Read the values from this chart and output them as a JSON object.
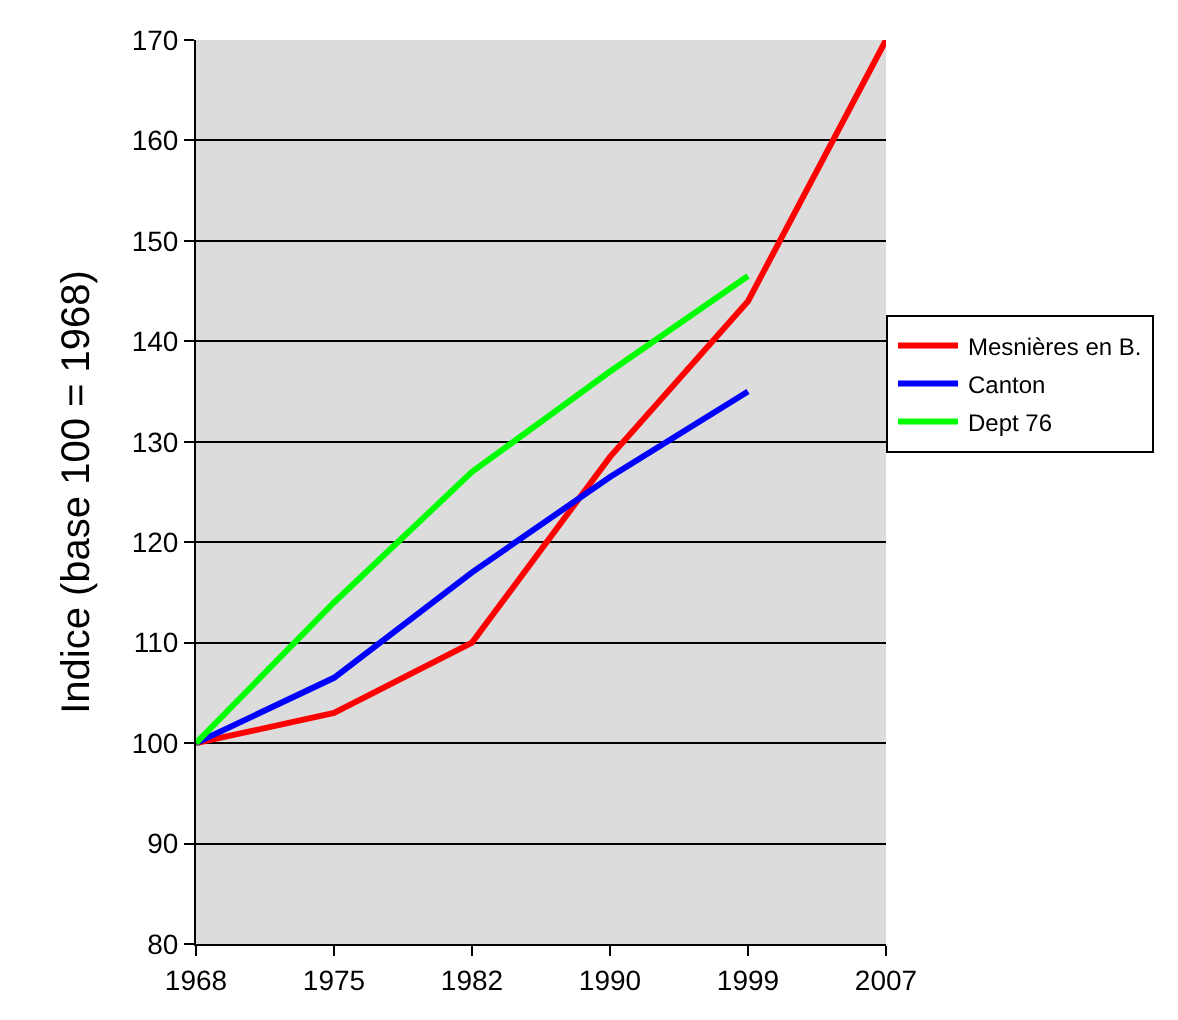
{
  "chart_data": {
    "type": "line",
    "ylabel": "Indice (base 100 = 1968)",
    "categories": [
      "1968",
      "1975",
      "1982",
      "1990",
      "1999",
      "2007"
    ],
    "series": [
      {
        "name": "Mesnières en B.",
        "color": "#ff0000",
        "values": [
          100,
          103,
          110,
          128.5,
          144,
          170
        ]
      },
      {
        "name": "Canton",
        "color": "#0000ff",
        "values": [
          100,
          106.5,
          117,
          126.5,
          135,
          null
        ]
      },
      {
        "name": "Dept 76",
        "color": "#00ff00",
        "values": [
          100,
          114,
          127,
          137,
          146.5,
          null
        ]
      }
    ],
    "ylim": [
      80,
      170
    ],
    "yticks": [
      80,
      90,
      100,
      110,
      120,
      130,
      140,
      150,
      160,
      170
    ],
    "grid": "y",
    "legend": "right",
    "marker": "none",
    "line_style": "solid"
  }
}
